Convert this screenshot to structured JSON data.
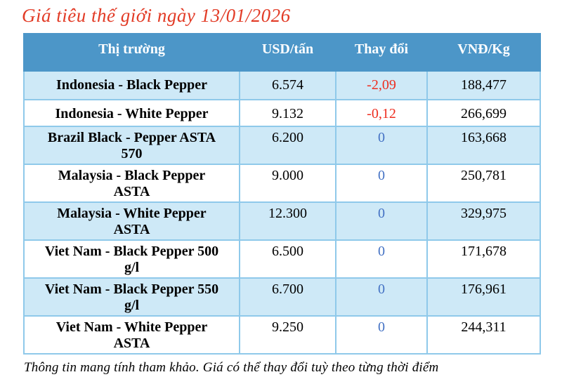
{
  "title": "Giá tiêu thế giới ngày 13/01/2026",
  "footer": "Thông tin mang tính tham khảo. Giá có thể thay đổi tuỳ theo từng thời điểm",
  "table": {
    "columns": [
      "Thị trường",
      "USD/tấn",
      "Thay đổi",
      "VNĐ/Kg"
    ],
    "rows": [
      {
        "market": "Indonesia - Black Pepper",
        "usd": "6.574",
        "change": "-2,09",
        "vnd": "188,477",
        "change_dir": "down"
      },
      {
        "market": "Indonesia - White Pepper",
        "usd": "9.132",
        "change": "-0,12",
        "vnd": "266,699",
        "change_dir": "down"
      },
      {
        "market": "Brazil Black - Pepper ASTA\n570",
        "usd": "6.200",
        "change": "0",
        "vnd": "163,668",
        "change_dir": "zero"
      },
      {
        "market": "Malaysia - Black Pepper\nASTA",
        "usd": "9.000",
        "change": "0",
        "vnd": "250,781",
        "change_dir": "zero"
      },
      {
        "market": "Malaysia - White Pepper\nASTA",
        "usd": "12.300",
        "change": "0",
        "vnd": "329,975",
        "change_dir": "zero"
      },
      {
        "market": "Viet Nam - Black Pepper 500\ng/l",
        "usd": "6.500",
        "change": "0",
        "vnd": "171,678",
        "change_dir": "zero"
      },
      {
        "market": "Viet Nam - Black Pepper 550\ng/l",
        "usd": "6.700",
        "change": "0",
        "vnd": "176,961",
        "change_dir": "zero"
      },
      {
        "market": "Viet Nam - White Pepper\nASTA",
        "usd": "9.250",
        "change": "0",
        "vnd": "244,311",
        "change_dir": "zero"
      }
    ]
  },
  "colors": {
    "header_bg": "#4c96c8",
    "row_alt_bg": "#cee9f7",
    "row_bg": "#ffffff",
    "border": "#8fc9ea",
    "title_red": "#e23b26",
    "change_negative": "#ee2d1f",
    "change_zero": "#4472c4",
    "text": "#000000"
  }
}
